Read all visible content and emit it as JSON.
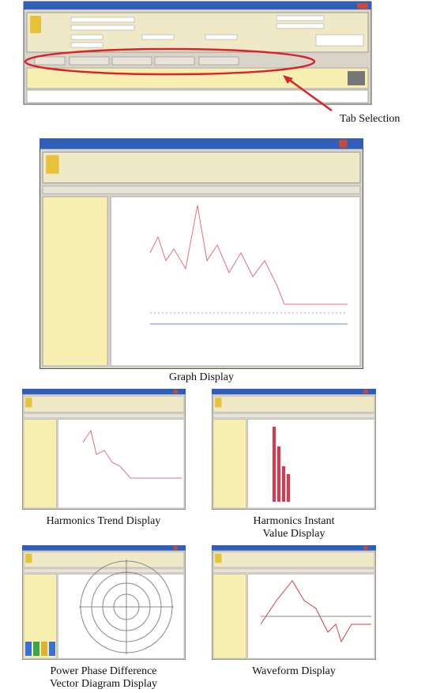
{
  "callout": {
    "label": "Tab Selection"
  },
  "captions": [
    {
      "lines": [
        "Graph Display"
      ]
    },
    {
      "lines": [
        "Harmonics Trend Display"
      ]
    },
    {
      "lines": [
        "Harmonics Instant",
        "Value Display"
      ]
    },
    {
      "lines": [
        "Power Phase Difference",
        "Vector Diagram Display"
      ]
    },
    {
      "lines": [
        "Waveform Display"
      ]
    }
  ]
}
